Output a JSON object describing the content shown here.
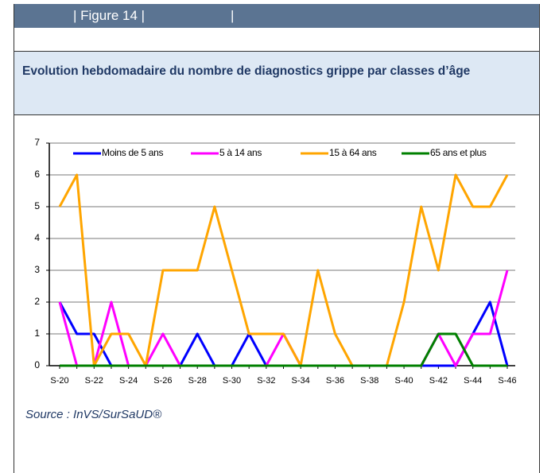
{
  "header": {
    "title": "| Figure 14 |",
    "separator": "|"
  },
  "source": "Source : InVS/SurSaUD®",
  "chart_data": {
    "type": "line",
    "title": "Evolution hebdomadaire du nombre de diagnostics grippe par classes d’âge",
    "categories": [
      "S-20",
      null,
      "S-22",
      null,
      "S-24",
      null,
      "S-26",
      null,
      "S-28",
      null,
      "S-30",
      null,
      "S-32",
      null,
      "S-34",
      null,
      "S-36",
      null,
      "S-38",
      null,
      "S-40",
      null,
      "S-42",
      null,
      "S-44",
      null,
      "S-46"
    ],
    "series": [
      {
        "name": "Moins de 5 ans",
        "color": "#0000ff",
        "values": [
          2,
          1,
          1,
          0,
          0,
          0,
          0,
          0,
          1,
          0,
          0,
          1,
          0,
          0,
          0,
          0,
          0,
          0,
          0,
          0,
          0,
          0,
          0,
          0,
          1,
          2,
          0
        ]
      },
      {
        "name": "5 à 14 ans",
        "color": "#ff00ff",
        "values": [
          2,
          0,
          0,
          2,
          0,
          0,
          1,
          0,
          0,
          0,
          0,
          0,
          0,
          1,
          0,
          0,
          0,
          0,
          0,
          0,
          0,
          0,
          1,
          0,
          1,
          1,
          3
        ]
      },
      {
        "name": "15 à 64 ans",
        "color": "#ffa500",
        "values": [
          5,
          6,
          0,
          1,
          1,
          0,
          3,
          3,
          3,
          5,
          3,
          1,
          1,
          1,
          0,
          3,
          1,
          0,
          0,
          0,
          2,
          5,
          3,
          6,
          5,
          5,
          6
        ]
      },
      {
        "name": "65 ans et plus",
        "color": "#008000",
        "values": [
          0,
          0,
          0,
          0,
          0,
          0,
          0,
          0,
          0,
          0,
          0,
          0,
          0,
          0,
          0,
          0,
          0,
          0,
          0,
          0,
          0,
          0,
          1,
          1,
          0,
          0,
          0
        ]
      }
    ],
    "ylim": [
      0,
      7
    ],
    "yticks": [
      0,
      1,
      2,
      3,
      4,
      5,
      6,
      7
    ],
    "grid": true
  }
}
